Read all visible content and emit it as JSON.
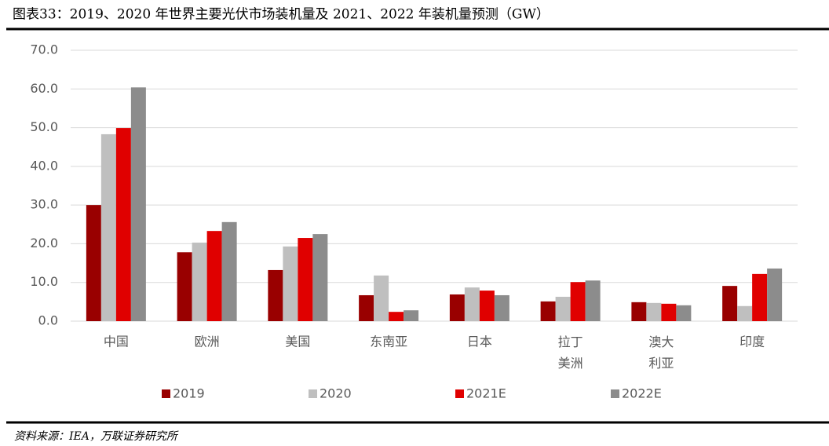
{
  "chart_data": {
    "type": "bar",
    "title": "图表33：2019、2020 年世界主要光伏市场装机量及 2021、2022 年装机量预测（GW）",
    "source": "资料来源：IEA，万联证券研究所",
    "categories": [
      "中国",
      "欧洲",
      "美国",
      "东南亚",
      "日本",
      "拉丁美洲",
      "澳大利亚",
      "印度"
    ],
    "series": [
      {
        "name": "2019",
        "color": "#990000",
        "values": [
          30.0,
          17.8,
          13.2,
          6.7,
          6.9,
          5.1,
          4.9,
          9.1
        ]
      },
      {
        "name": "2020",
        "color": "#bfbfbf",
        "values": [
          48.3,
          20.3,
          19.3,
          11.8,
          8.7,
          6.3,
          4.7,
          3.9
        ]
      },
      {
        "name": "2021E",
        "color": "#e00000",
        "values": [
          49.9,
          23.3,
          21.5,
          2.4,
          7.9,
          10.1,
          4.5,
          12.2
        ]
      },
      {
        "name": "2022E",
        "color": "#8c8c8c",
        "values": [
          60.4,
          25.6,
          22.5,
          2.8,
          6.7,
          10.5,
          4.1,
          13.6
        ]
      }
    ],
    "ylim": [
      0,
      70
    ],
    "yticks": [
      {
        "value": 0,
        "label": "0.0"
      },
      {
        "value": 10,
        "label": "10.0"
      },
      {
        "value": 20,
        "label": "20.0"
      },
      {
        "value": 30,
        "label": "30.0"
      },
      {
        "value": 40,
        "label": "40.0"
      },
      {
        "value": 50,
        "label": "50.0"
      },
      {
        "value": 60,
        "label": "60.0"
      },
      {
        "value": 70,
        "label": "70.0"
      }
    ],
    "grid": true,
    "legend": "bottom"
  }
}
